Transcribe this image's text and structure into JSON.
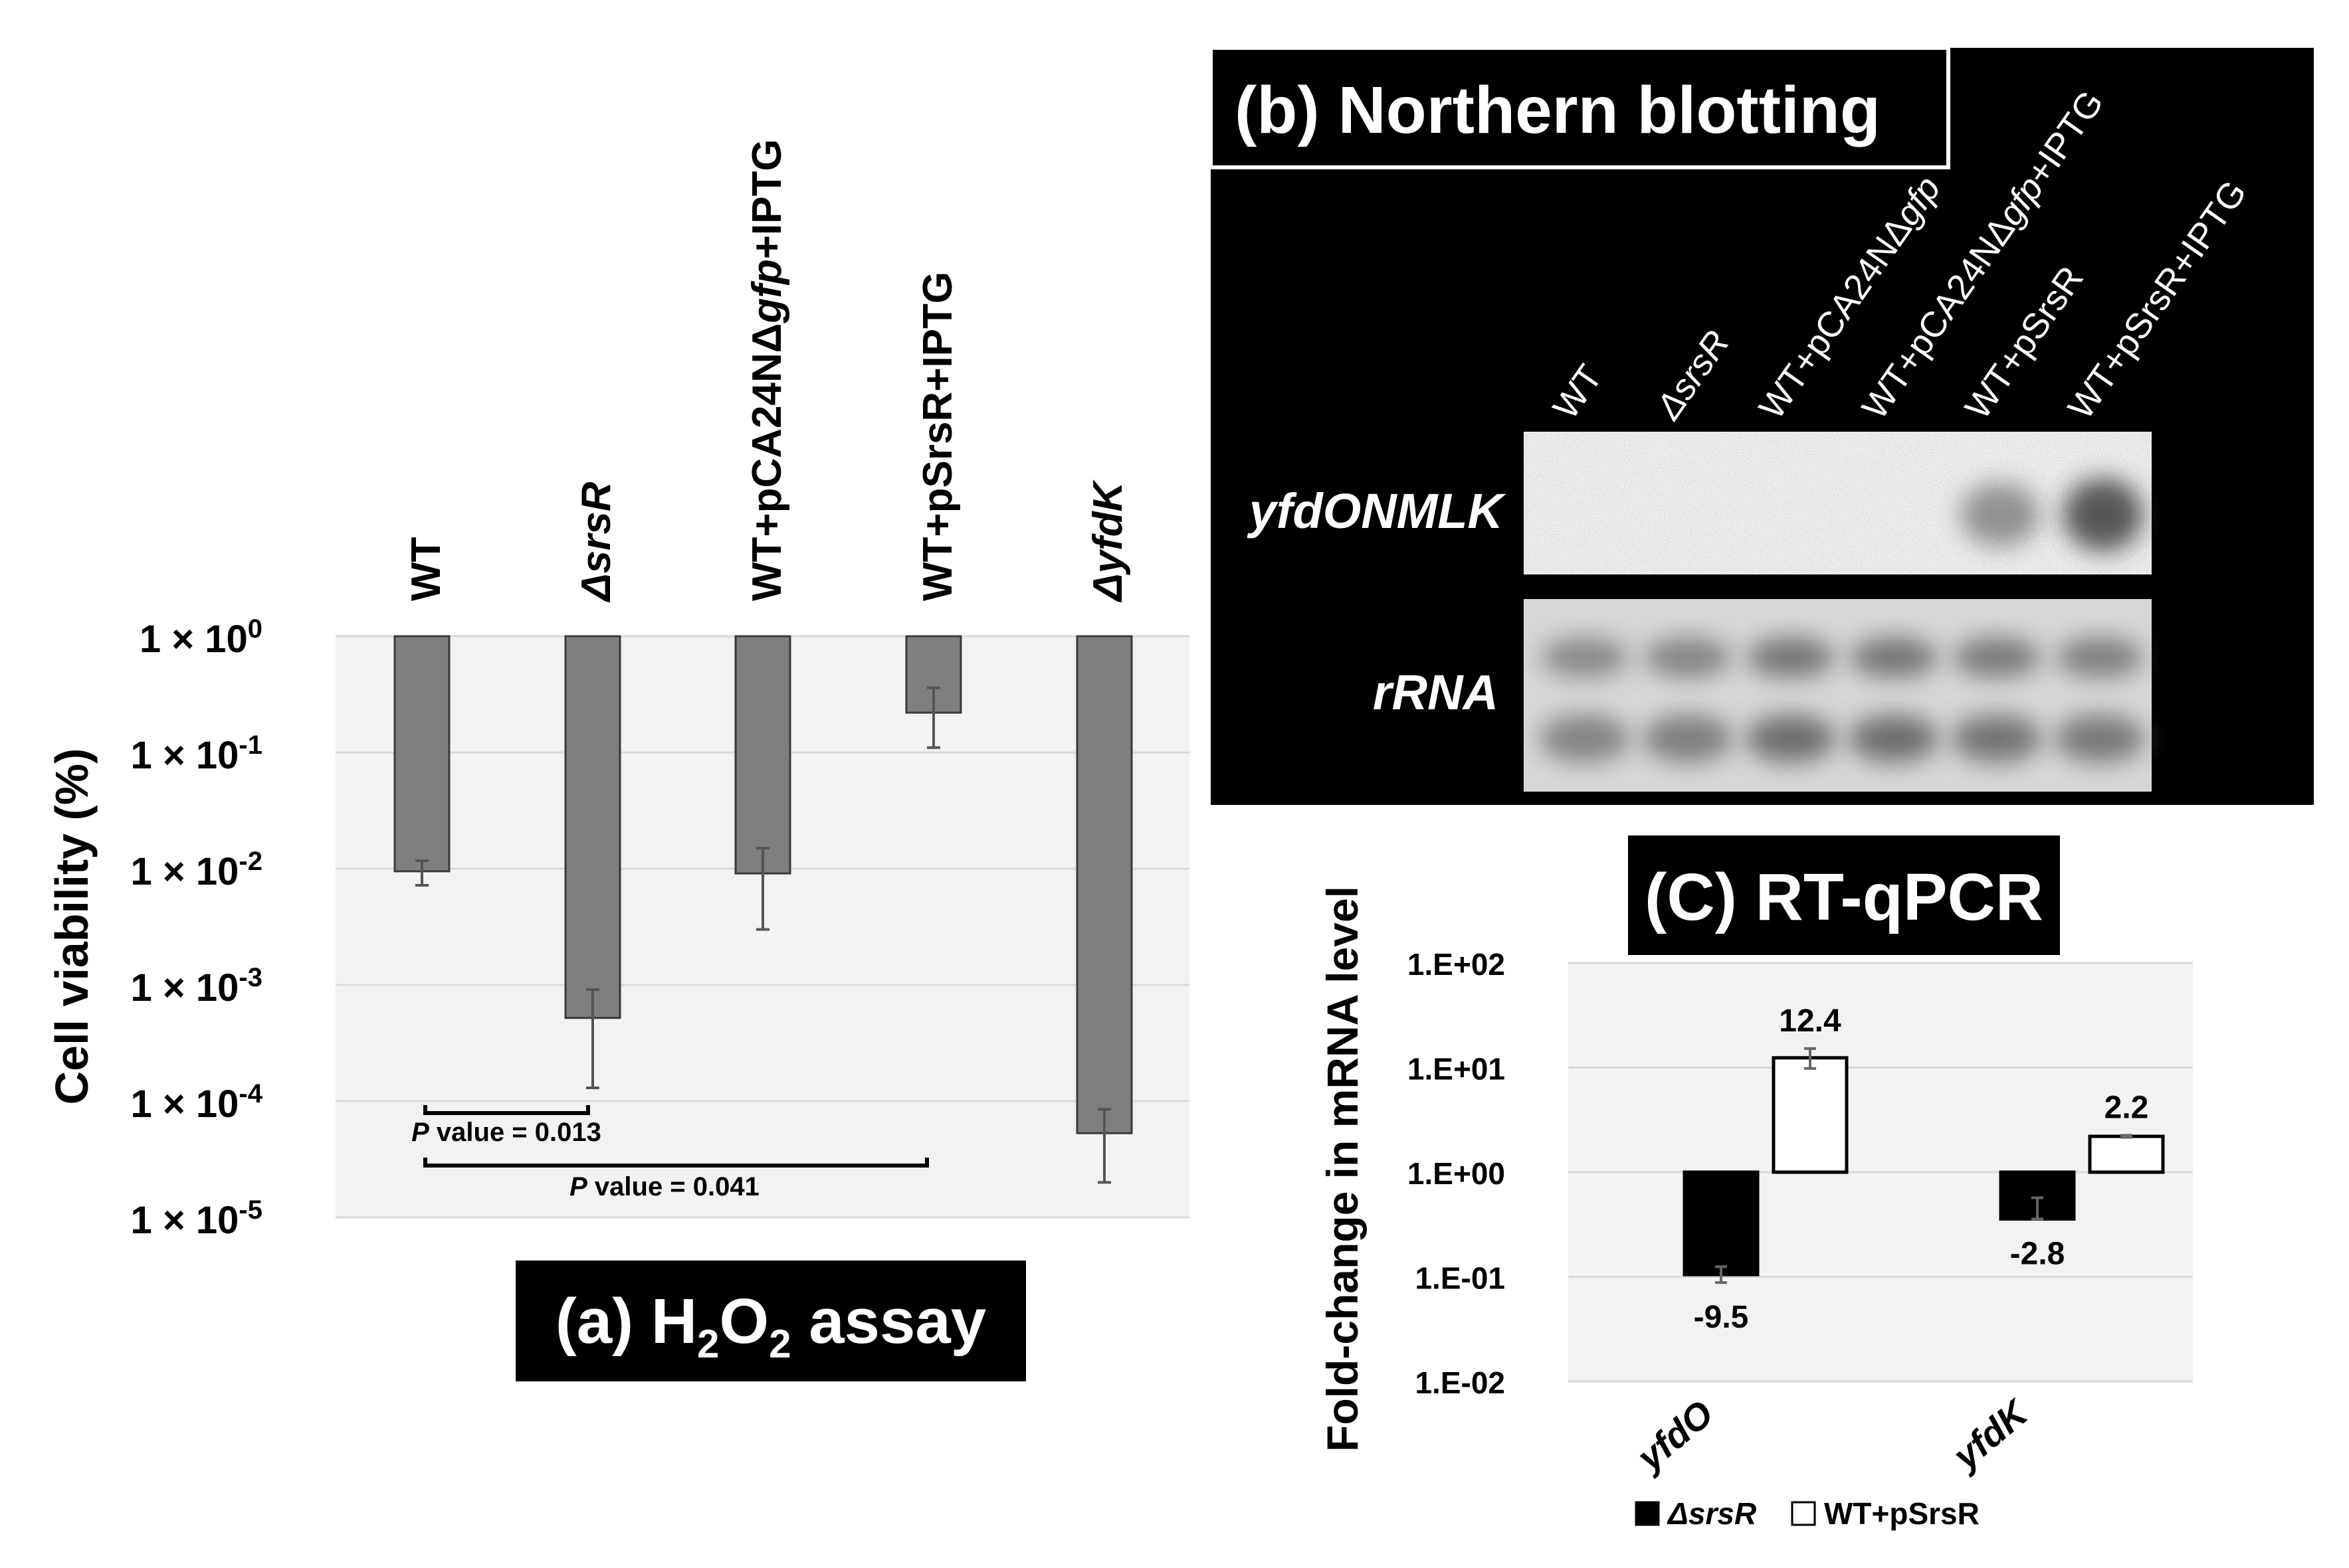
{
  "colors": {
    "panel_a_bar": "#7f7f7f",
    "plot_bg": "#f2f2f2",
    "grid": "#d9d9d9",
    "label_box": "#000000",
    "blot_bg": "#000000",
    "rrna_band": "#6e6e6e",
    "signal": "#3c3c3c"
  },
  "panel_a": {
    "title": "(a) H2O2 assay",
    "title_parts": {
      "prefix": "(a) H",
      "sub1": "2",
      "mid": "O",
      "sub2": "2",
      "suffix": " assay"
    },
    "ylabel": "Cell viability (%)",
    "ytick_labels": [
      "1×10^0",
      "1×10^-1",
      "1×10^-2",
      "1×10^-3",
      "1×10^-4",
      "1×10^-5"
    ],
    "ytick_bases": [
      "1 × 10",
      "1 × 10",
      "1 × 10",
      "1 × 10",
      "1 × 10",
      "1 × 10"
    ],
    "ytick_exps": [
      "0",
      "-1",
      "-2",
      "-3",
      "-4",
      "-5"
    ],
    "pvalue_labels": [
      {
        "italic": "P",
        "rest": " value = 0.013"
      },
      {
        "italic": "P",
        "rest": " value = 0.041"
      }
    ]
  },
  "panel_b": {
    "title": "(b) Northern blotting",
    "lane_labels": [
      "WT",
      "ΔsrsR",
      "WT+pCA24NΔgfp",
      "WT+pCA24NΔgfp+IPTG",
      "WT+pSrsR",
      "WT+pSrsR+IPTG"
    ],
    "row_labels": [
      "yfdONMLK",
      "rRNA"
    ],
    "yfd_signal_intensity": [
      0,
      0,
      0,
      0,
      0.5,
      0.85
    ],
    "rrna_intensity": [
      0.75,
      0.8,
      0.95,
      0.95,
      0.9,
      0.85
    ]
  },
  "panel_c": {
    "title": "(C) RT-qPCR",
    "ylabel": "Fold-change in mRNA level",
    "ytick_labels": [
      "1.E+02",
      "1.E+01",
      "1.E+00",
      "1.E-01",
      "1.E-02"
    ],
    "legend": [
      "ΔsrsR",
      "WT+pSrsR"
    ]
  },
  "chart_data": [
    {
      "type": "bar",
      "title": "(a) H2O2 assay",
      "xlabel": "",
      "ylabel": "Cell viability (%)",
      "yscale": "log",
      "ylim": [
        1e-05,
        1
      ],
      "grid": true,
      "categories": [
        "WT",
        "ΔsrsR",
        "WT+pCA24NΔgfp+IPTG",
        "WT+pSrsR+IPTG",
        "ΔyfdK"
      ],
      "values": [
        0.0095,
        0.00052,
        0.0091,
        0.22,
        5.3e-05
      ],
      "error_low": [
        0.0072,
        0.00013,
        0.003,
        0.11,
        2e-05
      ],
      "error_high": [
        0.0117,
        0.00091,
        0.015,
        0.36,
        8.5e-05
      ],
      "annotations": [
        "P value = 0.013",
        "P value = 0.041"
      ]
    },
    {
      "type": "bar",
      "title": "(C) RT-qPCR",
      "xlabel": "",
      "ylabel": "Fold-change in mRNA level",
      "yscale": "log",
      "ylim": [
        0.01,
        100
      ],
      "grid": true,
      "categories": [
        "yfdO",
        "yfdK"
      ],
      "series": [
        {
          "name": "ΔsrsR",
          "values": [
            0.105,
            0.357
          ],
          "error_low": [
            0.088,
            0.357
          ],
          "error_high": [
            0.125,
            0.57
          ],
          "data_labels": [
            "-9.5",
            "-2.8"
          ]
        },
        {
          "name": "WT+pSrsR",
          "values": [
            12.4,
            2.2
          ],
          "error_low": [
            9.8,
            2.15
          ],
          "error_high": [
            15.2,
            2.25
          ],
          "data_labels": [
            "12.4",
            "2.2"
          ]
        }
      ],
      "legend": "bottom"
    }
  ]
}
